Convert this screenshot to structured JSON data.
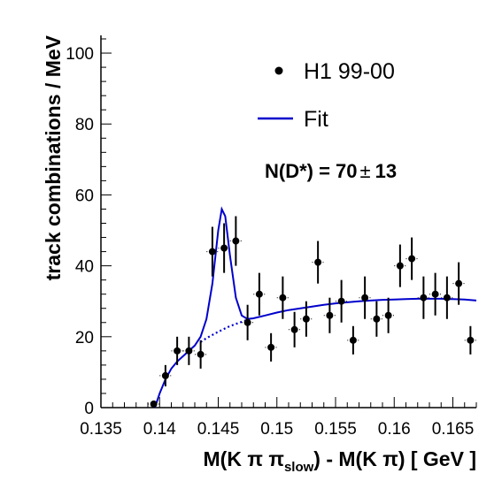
{
  "chart_data": {
    "type": "scatter",
    "xlabel_prefix": "M(K π π",
    "xlabel_sub": "slow",
    "xlabel_suffix": ") - M(K π) [ GeV ]",
    "ylabel": "track combinations / MeV",
    "xlim": [
      0.135,
      0.167
    ],
    "ylim": [
      0,
      105
    ],
    "xticks": [
      0.135,
      0.14,
      0.145,
      0.15,
      0.155,
      0.16,
      0.165
    ],
    "xtick_labels": [
      "0.135",
      "0.14",
      "0.145",
      "0.15",
      "0.155",
      "0.16",
      "0.165"
    ],
    "yticks": [
      0,
      20,
      40,
      60,
      80,
      100
    ],
    "ytick_labels": [
      "0",
      "20",
      "40",
      "60",
      "80",
      "100"
    ],
    "legend_position": "top-right",
    "annotation_prefix": "N(D*) = 70",
    "annotation_pm": "±",
    "annotation_suffix": "13",
    "series": [
      {
        "name": "H1 99-00",
        "style": "points-with-errors",
        "color": "#000000",
        "x_halfwidth": 0.0005,
        "points": [
          {
            "x": 0.1395,
            "y": 1,
            "err": 1
          },
          {
            "x": 0.1405,
            "y": 9,
            "err": 3
          },
          {
            "x": 0.1415,
            "y": 16,
            "err": 4
          },
          {
            "x": 0.1425,
            "y": 16,
            "err": 4
          },
          {
            "x": 0.1435,
            "y": 15,
            "err": 4
          },
          {
            "x": 0.1445,
            "y": 44,
            "err": 7
          },
          {
            "x": 0.1455,
            "y": 45,
            "err": 7
          },
          {
            "x": 0.1465,
            "y": 47,
            "err": 7
          },
          {
            "x": 0.1475,
            "y": 24,
            "err": 5
          },
          {
            "x": 0.1485,
            "y": 32,
            "err": 6
          },
          {
            "x": 0.1495,
            "y": 17,
            "err": 4
          },
          {
            "x": 0.1505,
            "y": 31,
            "err": 6
          },
          {
            "x": 0.1515,
            "y": 22,
            "err": 5
          },
          {
            "x": 0.1525,
            "y": 25,
            "err": 5
          },
          {
            "x": 0.1535,
            "y": 41,
            "err": 6
          },
          {
            "x": 0.1545,
            "y": 26,
            "err": 5
          },
          {
            "x": 0.1555,
            "y": 30,
            "err": 6
          },
          {
            "x": 0.1565,
            "y": 19,
            "err": 4
          },
          {
            "x": 0.1575,
            "y": 31,
            "err": 6
          },
          {
            "x": 0.1585,
            "y": 25,
            "err": 5
          },
          {
            "x": 0.1595,
            "y": 26,
            "err": 5
          },
          {
            "x": 0.1605,
            "y": 40,
            "err": 6
          },
          {
            "x": 0.1615,
            "y": 42,
            "err": 6
          },
          {
            "x": 0.1625,
            "y": 31,
            "err": 6
          },
          {
            "x": 0.1635,
            "y": 32,
            "err": 6
          },
          {
            "x": 0.1645,
            "y": 31,
            "err": 6
          },
          {
            "x": 0.1655,
            "y": 35,
            "err": 6
          },
          {
            "x": 0.1665,
            "y": 19,
            "err": 4
          }
        ]
      },
      {
        "name": "Fit",
        "style": "line",
        "color": "#0000cc",
        "points": [
          {
            "x": 0.1396,
            "y": 0
          },
          {
            "x": 0.14,
            "y": 4
          },
          {
            "x": 0.1405,
            "y": 8
          },
          {
            "x": 0.141,
            "y": 11
          },
          {
            "x": 0.1415,
            "y": 13
          },
          {
            "x": 0.142,
            "y": 14.5
          },
          {
            "x": 0.1425,
            "y": 16
          },
          {
            "x": 0.143,
            "y": 17.5
          },
          {
            "x": 0.1435,
            "y": 20
          },
          {
            "x": 0.144,
            "y": 25
          },
          {
            "x": 0.1445,
            "y": 35
          },
          {
            "x": 0.145,
            "y": 50
          },
          {
            "x": 0.1453,
            "y": 56
          },
          {
            "x": 0.1456,
            "y": 54
          },
          {
            "x": 0.146,
            "y": 43
          },
          {
            "x": 0.1465,
            "y": 31
          },
          {
            "x": 0.147,
            "y": 26
          },
          {
            "x": 0.1475,
            "y": 25
          },
          {
            "x": 0.148,
            "y": 25.2
          },
          {
            "x": 0.149,
            "y": 26
          },
          {
            "x": 0.15,
            "y": 26.8
          },
          {
            "x": 0.151,
            "y": 27.5
          },
          {
            "x": 0.152,
            "y": 28
          },
          {
            "x": 0.153,
            "y": 28.5
          },
          {
            "x": 0.154,
            "y": 29
          },
          {
            "x": 0.155,
            "y": 29.4
          },
          {
            "x": 0.156,
            "y": 29.7
          },
          {
            "x": 0.157,
            "y": 30
          },
          {
            "x": 0.158,
            "y": 30.2
          },
          {
            "x": 0.159,
            "y": 30.4
          },
          {
            "x": 0.16,
            "y": 30.5
          },
          {
            "x": 0.161,
            "y": 30.6
          },
          {
            "x": 0.162,
            "y": 30.7
          },
          {
            "x": 0.163,
            "y": 30.7
          },
          {
            "x": 0.164,
            "y": 30.7
          },
          {
            "x": 0.165,
            "y": 30.6
          },
          {
            "x": 0.166,
            "y": 30.5
          },
          {
            "x": 0.167,
            "y": 30.2
          }
        ]
      },
      {
        "name": "",
        "style": "dotted-line",
        "color": "#0000cc",
        "points": [
          {
            "x": 0.1435,
            "y": 18.5
          },
          {
            "x": 0.144,
            "y": 19.6
          },
          {
            "x": 0.1445,
            "y": 20.5
          },
          {
            "x": 0.145,
            "y": 21.4
          },
          {
            "x": 0.1455,
            "y": 22.2
          },
          {
            "x": 0.146,
            "y": 23
          },
          {
            "x": 0.1465,
            "y": 23.6
          },
          {
            "x": 0.147,
            "y": 24.2
          },
          {
            "x": 0.1475,
            "y": 24.8
          }
        ]
      }
    ]
  }
}
